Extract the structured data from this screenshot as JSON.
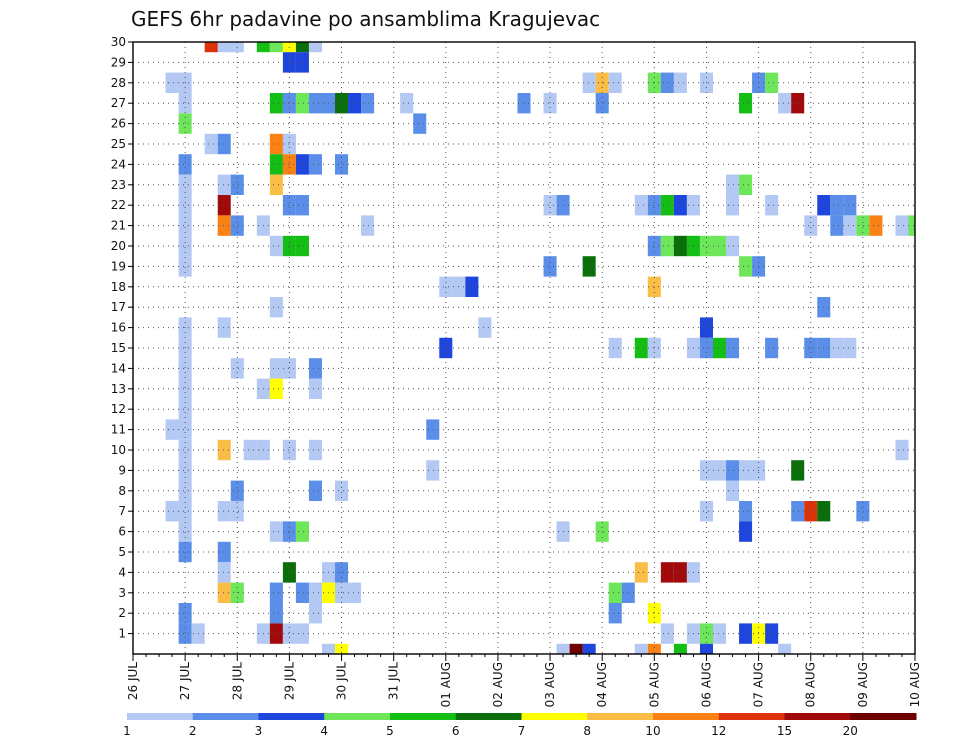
{
  "chart_data": {
    "type": "heatmap",
    "title": "GEFS 6hr padavine po ansamblima Kragujevac",
    "xlabel": "",
    "ylabel": "",
    "y_ticks": [
      "1",
      "2",
      "3",
      "4",
      "5",
      "6",
      "7",
      "8",
      "9",
      "10",
      "11",
      "12",
      "13",
      "14",
      "15",
      "16",
      "17",
      "18",
      "19",
      "20",
      "21",
      "22",
      "23",
      "24",
      "25",
      "26",
      "27",
      "28",
      "29",
      "30"
    ],
    "x_ticks": [
      "26 JUL",
      "27 JUL",
      "28 JUL",
      "29 JUL",
      "30 JUL",
      "31 JUL",
      "01 AUG",
      "02 AUG",
      "03 AUG",
      "04 AUG",
      "05 AUG",
      "06 AUG",
      "07 AUG",
      "08 AUG",
      "09 AUG",
      "10 AUG"
    ],
    "x_range_steps": [
      0,
      60
    ],
    "y_range": [
      0,
      30
    ],
    "grid": "dotted",
    "colorbar": {
      "labels": [
        "1",
        "2",
        "3",
        "4",
        "5",
        "6",
        "7",
        "8",
        "10",
        "12",
        "15",
        "20"
      ],
      "colors": [
        "#b3c8f2",
        "#5a8ee8",
        "#1e46dc",
        "#6ee65a",
        "#14be14",
        "#0a6e0a",
        "#ffff00",
        "#fabe46",
        "#fa8214",
        "#dc320a",
        "#a00a0a",
        "#6e0000"
      ]
    },
    "cell_x_units": "6-hour steps after 26 JUL 00 UTC",
    "cells": [
      [
        7,
        30,
        1
      ],
      [
        8,
        30,
        1
      ],
      [
        6,
        30,
        10
      ],
      [
        10,
        30,
        5
      ],
      [
        11,
        30,
        4
      ],
      [
        12,
        30,
        7
      ],
      [
        13,
        30,
        6
      ],
      [
        14,
        30,
        1
      ],
      [
        12,
        29,
        3
      ],
      [
        13,
        29,
        3
      ],
      [
        3,
        28,
        1
      ],
      [
        4,
        28,
        1
      ],
      [
        35,
        28,
        1
      ],
      [
        36,
        28,
        8
      ],
      [
        37,
        28,
        1
      ],
      [
        40,
        28,
        4
      ],
      [
        41,
        28,
        2
      ],
      [
        42,
        28,
        1
      ],
      [
        44,
        28,
        1
      ],
      [
        48,
        28,
        2
      ],
      [
        49,
        28,
        4
      ],
      [
        4,
        27,
        1
      ],
      [
        11,
        27,
        5
      ],
      [
        12,
        27,
        2
      ],
      [
        13,
        27,
        4
      ],
      [
        14,
        27,
        2
      ],
      [
        15,
        27,
        2
      ],
      [
        16,
        27,
        6
      ],
      [
        17,
        27,
        3
      ],
      [
        18,
        27,
        2
      ],
      [
        21,
        27,
        1
      ],
      [
        30,
        27,
        2
      ],
      [
        32,
        27,
        1
      ],
      [
        36,
        27,
        2
      ],
      [
        47,
        27,
        5
      ],
      [
        50,
        27,
        1
      ],
      [
        51,
        27,
        11
      ],
      [
        4,
        26,
        4
      ],
      [
        22,
        26,
        2
      ],
      [
        6,
        25,
        1
      ],
      [
        7,
        25,
        2
      ],
      [
        11,
        25,
        9
      ],
      [
        12,
        25,
        1
      ],
      [
        4,
        24,
        2
      ],
      [
        11,
        24,
        5
      ],
      [
        12,
        24,
        9
      ],
      [
        13,
        24,
        3
      ],
      [
        14,
        24,
        2
      ],
      [
        16,
        24,
        2
      ],
      [
        4,
        23,
        1
      ],
      [
        7,
        23,
        1
      ],
      [
        8,
        23,
        2
      ],
      [
        11,
        23,
        8
      ],
      [
        46,
        23,
        1
      ],
      [
        47,
        23,
        4
      ],
      [
        4,
        22,
        1
      ],
      [
        7,
        22,
        11
      ],
      [
        12,
        22,
        2
      ],
      [
        13,
        22,
        2
      ],
      [
        32,
        22,
        1
      ],
      [
        33,
        22,
        2
      ],
      [
        39,
        22,
        1
      ],
      [
        40,
        22,
        2
      ],
      [
        41,
        22,
        5
      ],
      [
        42,
        22,
        3
      ],
      [
        43,
        22,
        1
      ],
      [
        46,
        22,
        1
      ],
      [
        49,
        22,
        1
      ],
      [
        53,
        22,
        3
      ],
      [
        54,
        22,
        2
      ],
      [
        55,
        22,
        2
      ],
      [
        4,
        21,
        1
      ],
      [
        7,
        21,
        9
      ],
      [
        8,
        21,
        2
      ],
      [
        10,
        21,
        1
      ],
      [
        18,
        21,
        1
      ],
      [
        52,
        21,
        1
      ],
      [
        54,
        21,
        2
      ],
      [
        55,
        21,
        1
      ],
      [
        56,
        21,
        4
      ],
      [
        57,
        21,
        9
      ],
      [
        59,
        21,
        1
      ],
      [
        60,
        21,
        4
      ],
      [
        4,
        20,
        1
      ],
      [
        11,
        20,
        1
      ],
      [
        12,
        20,
        5
      ],
      [
        13,
        20,
        5
      ],
      [
        40,
        20,
        2
      ],
      [
        41,
        20,
        4
      ],
      [
        42,
        20,
        6
      ],
      [
        43,
        20,
        5
      ],
      [
        44,
        20,
        4
      ],
      [
        45,
        20,
        4
      ],
      [
        46,
        20,
        1
      ],
      [
        4,
        19,
        1
      ],
      [
        32,
        19,
        2
      ],
      [
        35,
        19,
        6
      ],
      [
        47,
        19,
        4
      ],
      [
        48,
        19,
        2
      ],
      [
        24,
        18,
        1
      ],
      [
        25,
        18,
        1
      ],
      [
        26,
        18,
        3
      ],
      [
        40,
        18,
        8
      ],
      [
        11,
        17,
        1
      ],
      [
        53,
        17,
        2
      ],
      [
        4,
        16,
        1
      ],
      [
        7,
        16,
        1
      ],
      [
        27,
        16,
        1
      ],
      [
        44,
        16,
        3
      ],
      [
        4,
        15,
        1
      ],
      [
        24,
        15,
        3
      ],
      [
        37,
        15,
        1
      ],
      [
        39,
        15,
        5
      ],
      [
        40,
        15,
        1
      ],
      [
        43,
        15,
        1
      ],
      [
        44,
        15,
        2
      ],
      [
        45,
        15,
        5
      ],
      [
        46,
        15,
        2
      ],
      [
        49,
        15,
        2
      ],
      [
        52,
        15,
        2
      ],
      [
        53,
        15,
        2
      ],
      [
        54,
        15,
        1
      ],
      [
        55,
        15,
        1
      ],
      [
        4,
        14,
        1
      ],
      [
        8,
        14,
        1
      ],
      [
        11,
        14,
        1
      ],
      [
        12,
        14,
        1
      ],
      [
        14,
        14,
        2
      ],
      [
        4,
        13,
        1
      ],
      [
        10,
        13,
        1
      ],
      [
        11,
        13,
        7
      ],
      [
        14,
        13,
        1
      ],
      [
        4,
        12,
        1
      ],
      [
        3,
        11,
        1
      ],
      [
        4,
        11,
        1
      ],
      [
        23,
        11,
        2
      ],
      [
        4,
        10,
        1
      ],
      [
        7,
        10,
        8
      ],
      [
        9,
        10,
        1
      ],
      [
        10,
        10,
        1
      ],
      [
        12,
        10,
        1
      ],
      [
        14,
        10,
        1
      ],
      [
        59,
        10,
        1
      ],
      [
        4,
        9,
        1
      ],
      [
        23,
        9,
        1
      ],
      [
        44,
        9,
        1
      ],
      [
        45,
        9,
        1
      ],
      [
        46,
        9,
        2
      ],
      [
        47,
        9,
        1
      ],
      [
        48,
        9,
        1
      ],
      [
        51,
        9,
        6
      ],
      [
        4,
        8,
        1
      ],
      [
        8,
        8,
        2
      ],
      [
        14,
        8,
        2
      ],
      [
        16,
        8,
        1
      ],
      [
        46,
        8,
        1
      ],
      [
        3,
        7,
        1
      ],
      [
        4,
        7,
        1
      ],
      [
        7,
        7,
        1
      ],
      [
        8,
        7,
        1
      ],
      [
        44,
        7,
        1
      ],
      [
        47,
        7,
        2
      ],
      [
        51,
        7,
        2
      ],
      [
        52,
        7,
        10
      ],
      [
        53,
        7,
        6
      ],
      [
        56,
        7,
        2
      ],
      [
        4,
        6,
        1
      ],
      [
        11,
        6,
        1
      ],
      [
        12,
        6,
        2
      ],
      [
        13,
        6,
        4
      ],
      [
        33,
        6,
        1
      ],
      [
        36,
        6,
        4
      ],
      [
        47,
        6,
        3
      ],
      [
        4,
        5,
        2
      ],
      [
        7,
        5,
        2
      ],
      [
        7,
        4,
        1
      ],
      [
        12,
        4,
        6
      ],
      [
        15,
        4,
        1
      ],
      [
        16,
        4,
        2
      ],
      [
        39,
        4,
        8
      ],
      [
        41,
        4,
        11
      ],
      [
        42,
        4,
        11
      ],
      [
        43,
        4,
        1
      ],
      [
        7,
        3,
        8
      ],
      [
        8,
        3,
        4
      ],
      [
        11,
        3,
        2
      ],
      [
        13,
        3,
        2
      ],
      [
        14,
        3,
        1
      ],
      [
        15,
        3,
        7
      ],
      [
        16,
        3,
        1
      ],
      [
        17,
        3,
        1
      ],
      [
        37,
        3,
        4
      ],
      [
        38,
        3,
        2
      ],
      [
        4,
        2,
        2
      ],
      [
        11,
        2,
        2
      ],
      [
        14,
        2,
        1
      ],
      [
        37,
        2,
        2
      ],
      [
        40,
        2,
        7
      ],
      [
        4,
        1,
        2
      ],
      [
        5,
        1,
        1
      ],
      [
        10,
        1,
        1
      ],
      [
        11,
        1,
        11
      ],
      [
        12,
        1,
        1
      ],
      [
        13,
        1,
        1
      ],
      [
        41,
        1,
        1
      ],
      [
        43,
        1,
        1
      ],
      [
        44,
        1,
        4
      ],
      [
        45,
        1,
        1
      ],
      [
        47,
        1,
        3
      ],
      [
        48,
        1,
        7
      ],
      [
        49,
        1,
        3
      ],
      [
        15,
        0,
        1
      ],
      [
        16,
        0,
        7
      ],
      [
        33,
        0,
        1
      ],
      [
        34,
        0,
        12
      ],
      [
        35,
        0,
        3
      ],
      [
        39,
        0,
        1
      ],
      [
        40,
        0,
        9
      ],
      [
        42,
        0,
        5
      ],
      [
        44,
        0,
        3
      ],
      [
        50,
        0,
        1
      ]
    ]
  }
}
